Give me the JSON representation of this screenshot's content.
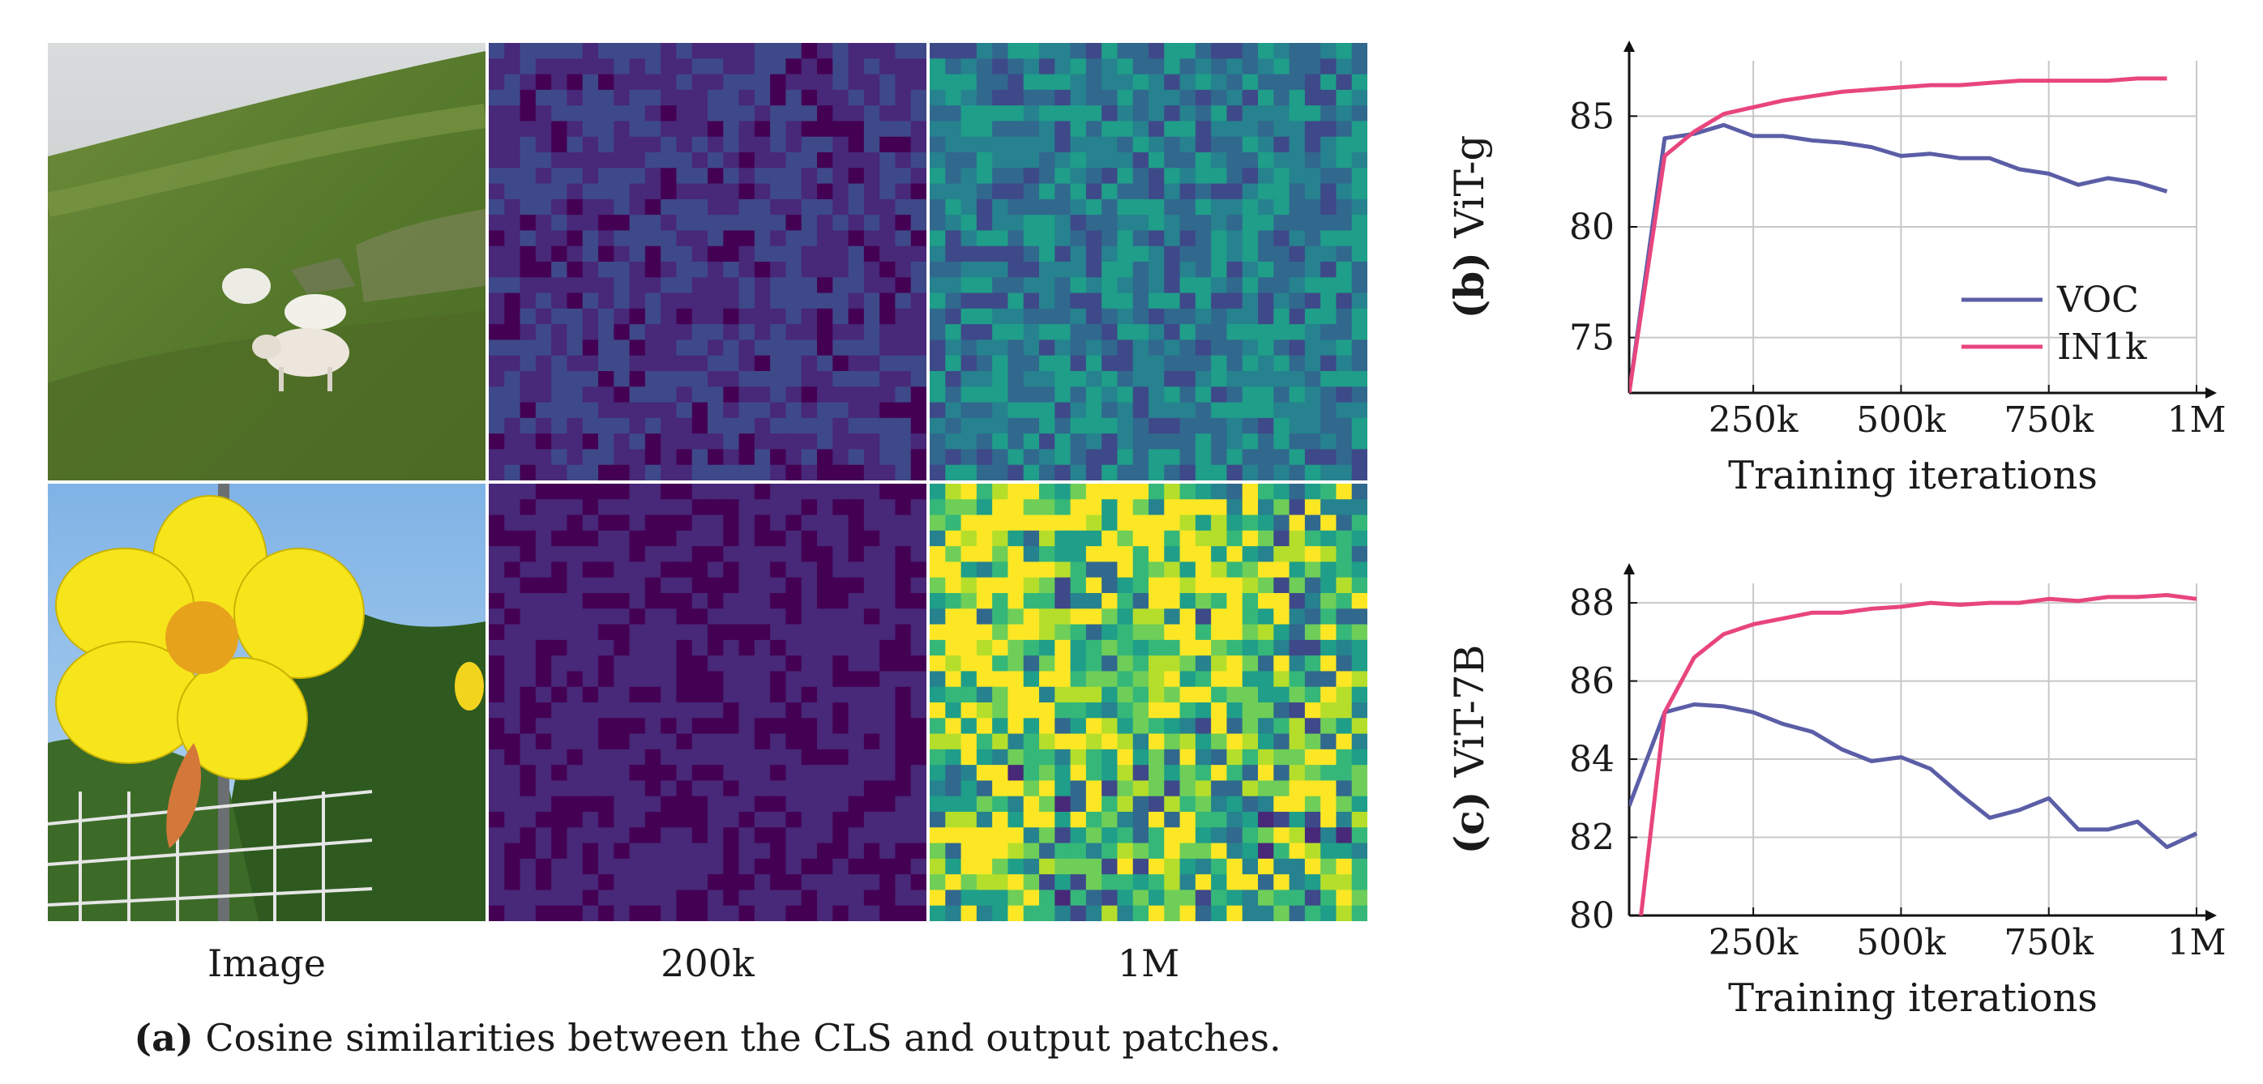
{
  "figure_a": {
    "column_labels": [
      "Image",
      "200k",
      "1M"
    ],
    "caption_prefix": "(a)",
    "caption_text": "Cosine similarities between the CLS and output patches.",
    "rows": [
      {
        "name": "sheep",
        "map_200k_level": 0.18,
        "map_1m_level": 0.42
      },
      {
        "name": "flower",
        "map_200k_level": 0.12,
        "map_1m_level": 0.62
      }
    ],
    "colormap": [
      "#440154",
      "#482878",
      "#3e4989",
      "#31688e",
      "#26828e",
      "#1f9e89",
      "#35b779",
      "#6ece58",
      "#b5de2b",
      "#fde725"
    ]
  },
  "chart_data": [
    {
      "type": "line",
      "panel_prefix": "(b)",
      "panel_label": "ViT-g",
      "xlabel": "Training iterations",
      "ylabel": "",
      "xlim": [
        40000,
        1000000
      ],
      "ylim": [
        72.5,
        87.5
      ],
      "xticks": [
        250000,
        500000,
        750000,
        1000000
      ],
      "xtick_labels": [
        "250k",
        "500k",
        "750k",
        "1M"
      ],
      "yticks": [
        75,
        80,
        85
      ],
      "ytick_labels": [
        "75",
        "80",
        "85"
      ],
      "grid": true,
      "legend_position": "bottom-right",
      "series": [
        {
          "name": "VOC",
          "color": "#5b5ea6",
          "x": [
            40000,
            100000,
            150000,
            200000,
            250000,
            300000,
            350000,
            400000,
            450000,
            500000,
            550000,
            600000,
            650000,
            700000,
            750000,
            800000,
            850000,
            900000,
            950000
          ],
          "y": [
            72.5,
            84.0,
            84.2,
            84.6,
            84.1,
            84.1,
            83.9,
            83.8,
            83.6,
            83.2,
            83.3,
            83.1,
            83.1,
            82.6,
            82.4,
            81.9,
            82.2,
            82.0,
            81.6
          ]
        },
        {
          "name": "IN1k",
          "color": "#e8457f",
          "x": [
            40000,
            100000,
            150000,
            200000,
            250000,
            300000,
            350000,
            400000,
            450000,
            500000,
            550000,
            600000,
            650000,
            700000,
            750000,
            800000,
            850000,
            900000,
            950000
          ],
          "y": [
            72.5,
            83.2,
            84.3,
            85.1,
            85.4,
            85.7,
            85.9,
            86.1,
            86.2,
            86.3,
            86.4,
            86.4,
            86.5,
            86.6,
            86.6,
            86.6,
            86.6,
            86.7,
            86.7
          ]
        }
      ]
    },
    {
      "type": "line",
      "panel_prefix": "(c)",
      "panel_label": "ViT-7B",
      "xlabel": "Training iterations",
      "ylabel": "",
      "xlim": [
        40000,
        1000000
      ],
      "ylim": [
        80,
        88.5
      ],
      "xticks": [
        250000,
        500000,
        750000,
        1000000
      ],
      "xtick_labels": [
        "250k",
        "500k",
        "750k",
        "1M"
      ],
      "yticks": [
        80,
        82,
        84,
        86,
        88
      ],
      "ytick_labels": [
        "80",
        "82",
        "84",
        "86",
        "88"
      ],
      "grid": true,
      "legend_position": "none",
      "series": [
        {
          "name": "VOC",
          "color": "#5b5ea6",
          "x": [
            40000,
            100000,
            150000,
            200000,
            250000,
            300000,
            350000,
            400000,
            450000,
            500000,
            550000,
            600000,
            650000,
            700000,
            750000,
            800000,
            850000,
            900000,
            950000,
            1000000
          ],
          "y": [
            82.8,
            85.2,
            85.4,
            85.35,
            85.2,
            84.9,
            84.7,
            84.25,
            83.95,
            84.05,
            83.75,
            83.1,
            82.5,
            82.7,
            83.0,
            82.2,
            82.2,
            82.4,
            81.75,
            82.1
          ]
        },
        {
          "name": "IN1k",
          "color": "#e8457f",
          "x": [
            60000,
            100000,
            150000,
            200000,
            250000,
            300000,
            350000,
            400000,
            450000,
            500000,
            550000,
            600000,
            650000,
            700000,
            750000,
            800000,
            850000,
            900000,
            950000,
            1000000
          ],
          "y": [
            80.0,
            85.2,
            86.6,
            87.2,
            87.45,
            87.6,
            87.75,
            87.75,
            87.85,
            87.9,
            88.0,
            87.95,
            88.0,
            88.0,
            88.1,
            88.05,
            88.15,
            88.15,
            88.2,
            88.1
          ]
        }
      ]
    }
  ]
}
